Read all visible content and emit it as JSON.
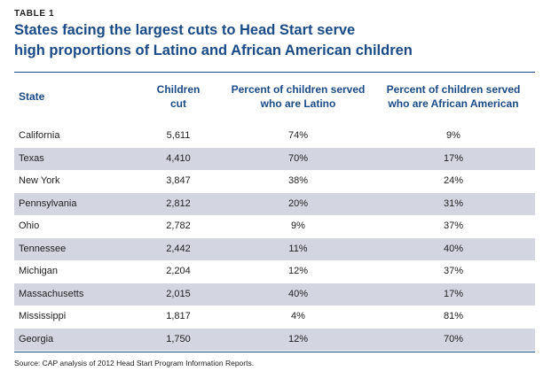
{
  "table_label": "TABLE 1",
  "title_lines": [
    "States facing the largest cuts to Head Start serve",
    "high proportions of Latino and African American children"
  ],
  "source": "Source: CAP analysis of 2012 Head Start Program Information Reports.",
  "colors": {
    "title": "#1a4b86",
    "row_shade": "#d3d6e1",
    "rule": "#1a4b86"
  },
  "chart_data": {
    "type": "table",
    "title": "States facing the largest cuts to Head Start serve high proportions of Latino and African American children",
    "headers": [
      [
        "State"
      ],
      [
        "Children",
        "cut"
      ],
      [
        "Percent of children served",
        "who are Latino"
      ],
      [
        "Percent of children served",
        "who are African American"
      ]
    ],
    "rows": [
      {
        "state": "California",
        "children_cut": "5,611",
        "latino": "74%",
        "african_american": "9%"
      },
      {
        "state": "Texas",
        "children_cut": "4,410",
        "latino": "70%",
        "african_american": "17%"
      },
      {
        "state": "New York",
        "children_cut": "3,847",
        "latino": "38%",
        "african_american": "24%"
      },
      {
        "state": "Pennsylvania",
        "children_cut": "2,812",
        "latino": "20%",
        "african_american": "31%"
      },
      {
        "state": "Ohio",
        "children_cut": "2,782",
        "latino": "9%",
        "african_american": "37%"
      },
      {
        "state": "Tennessee",
        "children_cut": "2,442",
        "latino": "11%",
        "african_american": "40%"
      },
      {
        "state": "Michigan",
        "children_cut": "2,204",
        "latino": "12%",
        "african_american": "37%"
      },
      {
        "state": "Massachusetts",
        "children_cut": "2,015",
        "latino": "40%",
        "african_american": "17%"
      },
      {
        "state": "Mississippi",
        "children_cut": "1,817",
        "latino": "4%",
        "african_american": "81%"
      },
      {
        "state": "Georgia",
        "children_cut": "1,750",
        "latino": "12%",
        "african_american": "70%"
      }
    ]
  }
}
